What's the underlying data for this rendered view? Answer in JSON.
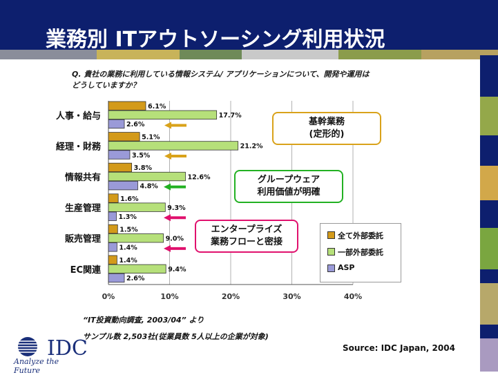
{
  "title": "業務別 ITアウトソーシング利用状況",
  "question_line1": "Q. 貴社の業務に利用している情報システム/ アプリケーションについて、開発や運用は",
  "question_line2": "どうしていますか？",
  "callouts": [
    {
      "line1": "基幹業務",
      "line2": "(定形的)",
      "color": "#d9a21a"
    },
    {
      "line1": "グループウェア",
      "line2": "利用価値が明確",
      "color": "#22b122"
    },
    {
      "line1": "エンタープライズ",
      "line2": "業務フローと密接",
      "color": "#e0106d"
    }
  ],
  "note1": "“IT投資動向調査, 2003/04”  より",
  "note2": "サンプル数  2,503社(従業員数 5人以上の企業が対象)",
  "source": "Source: IDC Japan, 2004",
  "logo": {
    "name": "IDC",
    "tagline": "Analyze the Future"
  },
  "chart_data": {
    "type": "bar",
    "orientation": "horizontal",
    "categories": [
      "人事・給与",
      "経理・財務",
      "情報共有",
      "生産管理",
      "販売管理",
      "EC関連"
    ],
    "series": [
      {
        "name": "全て外部委託",
        "color": "#d39a1a",
        "values": [
          6.1,
          5.1,
          3.8,
          1.6,
          1.5,
          1.4
        ],
        "labels": [
          "6.1%",
          "5.1%",
          "3.8%",
          "1.6%",
          "1.5%",
          "1.4%"
        ]
      },
      {
        "name": "一部外部委託",
        "color": "#b6e07a",
        "values": [
          17.7,
          21.2,
          12.6,
          9.3,
          9.0,
          9.4
        ],
        "labels": [
          "17.7%",
          "21.2%",
          "12.6%",
          "9.3%",
          "9.0%",
          "9.4%"
        ]
      },
      {
        "name": "ASP",
        "color": "#9a9ad8",
        "values": [
          2.6,
          3.5,
          4.8,
          1.3,
          1.4,
          2.6
        ],
        "labels": [
          "2.6%",
          "3.5%",
          "4.8%",
          "1.3%",
          "1.4%",
          "2.6%"
        ]
      }
    ],
    "xticks": [
      "0%",
      "10%",
      "20%",
      "30%",
      "40%"
    ],
    "xlim": [
      0,
      40
    ],
    "grid": true,
    "legend_position": "bottom-right",
    "arrows": [
      {
        "category_index": 0,
        "color": "#d9a21a"
      },
      {
        "category_index": 1,
        "color": "#d9a21a"
      },
      {
        "category_index": 2,
        "color": "#22b122"
      },
      {
        "category_index": 3,
        "color": "#e0106d"
      },
      {
        "category_index": 4,
        "color": "#e0106d"
      }
    ]
  }
}
